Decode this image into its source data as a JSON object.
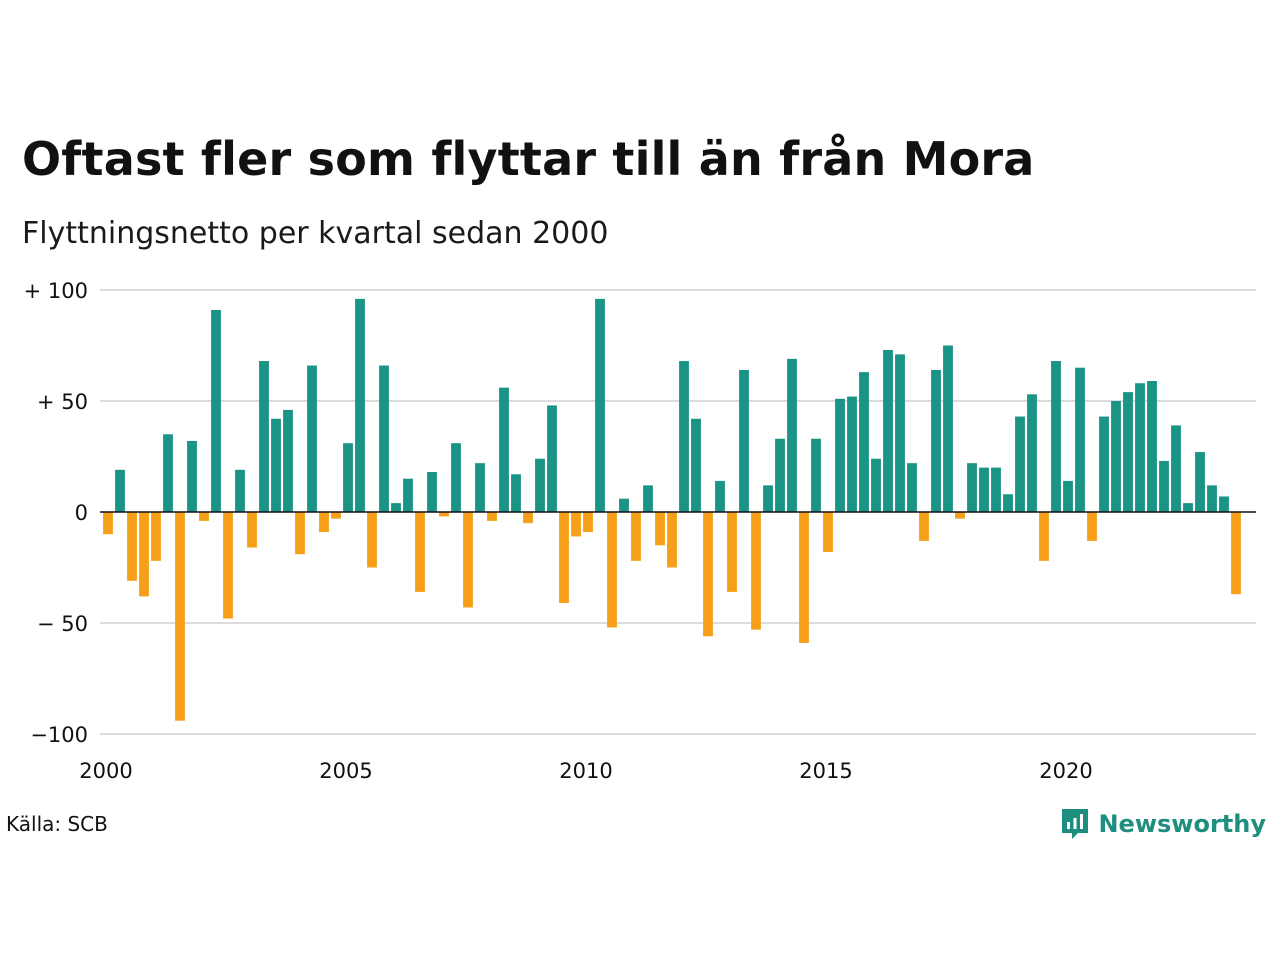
{
  "title": "Oftast fler som flyttar till än från Mora",
  "subtitle": "Flyttningsnetto per kvartal sedan 2000",
  "source": "Källa: SCB",
  "brand": "Newsworthy",
  "icons": {
    "brand_logo": "newsworthy-logo-icon"
  },
  "colors": {
    "positive": "#1a9484",
    "negative": "#f6a01a",
    "grid": "#dcdcdc",
    "brand": "#1e8f7e"
  },
  "chart_data": {
    "type": "bar",
    "title": "Oftast fler som flyttar till än från Mora",
    "subtitle": "Flyttningsnetto per kvartal sedan 2000",
    "xlabel": "",
    "ylabel": "",
    "ylim": [
      -100,
      100
    ],
    "yticks": [
      {
        "value": 100,
        "label": "+ 100"
      },
      {
        "value": 50,
        "label": "+  50"
      },
      {
        "value": 0,
        "label": "0"
      },
      {
        "value": -50,
        "label": "− 50"
      },
      {
        "value": -100,
        "label": "−100"
      }
    ],
    "xticks": [
      "2000",
      "2005",
      "2010",
      "2015",
      "2020"
    ],
    "grid": true,
    "legend": "none",
    "categories": [
      "2000 K1",
      "2000 K2",
      "2000 K3",
      "2000 K4",
      "2001 K1",
      "2001 K2",
      "2001 K3",
      "2001 K4",
      "2002 K1",
      "2002 K2",
      "2002 K3",
      "2002 K4",
      "2003 K1",
      "2003 K2",
      "2003 K3",
      "2003 K4",
      "2004 K1",
      "2004 K2",
      "2004 K3",
      "2004 K4",
      "2005 K1",
      "2005 K2",
      "2005 K3",
      "2005 K4",
      "2006 K1",
      "2006 K2",
      "2006 K3",
      "2006 K4",
      "2007 K1",
      "2007 K2",
      "2007 K3",
      "2007 K4",
      "2008 K1",
      "2008 K2",
      "2008 K3",
      "2008 K4",
      "2009 K1",
      "2009 K2",
      "2009 K3",
      "2009 K4",
      "2010 K1",
      "2010 K2",
      "2010 K3",
      "2010 K4",
      "2011 K1",
      "2011 K2",
      "2011 K3",
      "2011 K4",
      "2012 K1",
      "2012 K2",
      "2012 K3",
      "2012 K4",
      "2013 K1",
      "2013 K2",
      "2013 K3",
      "2013 K4",
      "2014 K1",
      "2014 K2",
      "2014 K3",
      "2014 K4",
      "2015 K1",
      "2015 K2",
      "2015 K3",
      "2015 K4",
      "2016 K1",
      "2016 K2",
      "2016 K3",
      "2016 K4",
      "2017 K1",
      "2017 K2",
      "2017 K3",
      "2017 K4",
      "2018 K1",
      "2018 K2",
      "2018 K3",
      "2018 K4",
      "2019 K1",
      "2019 K2",
      "2019 K3",
      "2019 K4",
      "2020 K1",
      "2020 K2",
      "2020 K3",
      "2020 K4",
      "2021 K1",
      "2021 K2",
      "2021 K3",
      "2021 K4",
      "2022 K1",
      "2022 K2",
      "2022 K3",
      "2022 K4",
      "2023 K1",
      "2023 K2",
      "2023 K3",
      "2023 K4"
    ],
    "values": [
      -10,
      19,
      -31,
      -38,
      -22,
      35,
      -94,
      32,
      -4,
      91,
      -48,
      19,
      -16,
      68,
      42,
      46,
      -19,
      66,
      -9,
      -3,
      31,
      96,
      -25,
      66,
      4,
      15,
      -36,
      18,
      -2,
      31,
      -43,
      22,
      -4,
      56,
      17,
      -5,
      24,
      48,
      -41,
      -11,
      -9,
      96,
      -52,
      6,
      -22,
      12,
      -15,
      -25,
      68,
      42,
      -56,
      14,
      -36,
      64,
      -53,
      12,
      33,
      69,
      -59,
      33,
      -18,
      51,
      52,
      63,
      24,
      73,
      71,
      22,
      -13,
      64,
      75,
      -3,
      22,
      20,
      20,
      8,
      43,
      53,
      -22,
      68,
      14,
      65,
      -13,
      43,
      50,
      54,
      58,
      59,
      23,
      39,
      4,
      27,
      12,
      7,
      -37,
      0
    ]
  }
}
